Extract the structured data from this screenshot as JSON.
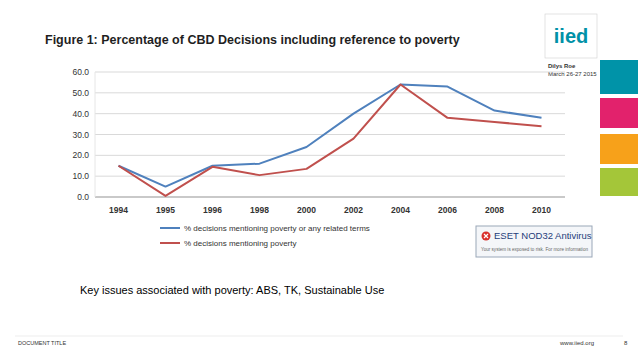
{
  "chart_data": {
    "type": "line",
    "title": "Figure 1: Percentage of CBD Decisions including reference to poverty",
    "categories": [
      "1994",
      "1995",
      "1996",
      "1998",
      "2000",
      "2002",
      "2004",
      "2006",
      "2008",
      "2010"
    ],
    "series": [
      {
        "name": "% decisions mentioning poverty or any related terms",
        "color": "#4f81bd",
        "values": [
          15,
          5,
          15,
          16,
          24,
          40,
          54,
          53,
          41.5,
          38
        ]
      },
      {
        "name": "% decisions mentioning poverty",
        "color": "#c0504d",
        "values": [
          15,
          0.5,
          14.5,
          10.5,
          13.5,
          28,
          54,
          38,
          36,
          34
        ]
      }
    ],
    "ylim": [
      0,
      60
    ],
    "yticks": [
      {
        "value": 0,
        "label": "0.0"
      },
      {
        "value": 10,
        "label": "10.0"
      },
      {
        "value": 20,
        "label": "20.0"
      },
      {
        "value": 30,
        "label": "30.0"
      },
      {
        "value": 40,
        "label": "40.0"
      },
      {
        "value": 50,
        "label": "50.0"
      },
      {
        "value": 60,
        "label": "60.0"
      }
    ],
    "grid": true,
    "legend": "bottom"
  },
  "slide": {
    "logo": "iied",
    "author": "Dilys Roe",
    "date": "March 26-27 2015",
    "caption": "Key issues associated with poverty: ABS, TK, Sustainable Use",
    "footer_left": "DOCUMENT TITLE",
    "footer_url": "www.iied.org",
    "page": "8"
  },
  "popup": {
    "title": "ESET NOD32 Antivirus",
    "message": "Your system is exposed to risk. For more information"
  }
}
